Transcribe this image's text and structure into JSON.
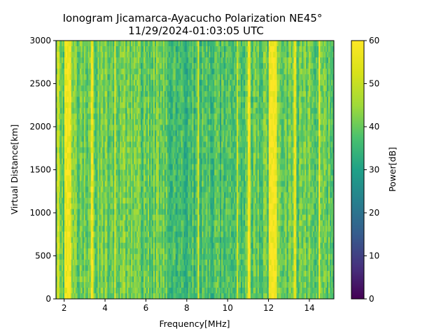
{
  "chart_data": {
    "type": "heatmap",
    "title": "Ionogram Jicamarca-Ayacucho Polarization NE45°",
    "subtitle": "11/29/2024-01:03:05 UTC",
    "xlabel": "Frequency[MHz]",
    "ylabel": "Virtual Distance[km]",
    "xlim": [
      1.6,
      15.2
    ],
    "ylim": [
      0,
      3000
    ],
    "x_ticks": [
      2,
      4,
      6,
      8,
      10,
      12,
      14
    ],
    "x_tick_labels": [
      "2",
      "4",
      "6",
      "8",
      "10",
      "12",
      "14"
    ],
    "y_ticks": [
      0,
      500,
      1000,
      1500,
      2000,
      2500,
      3000
    ],
    "y_tick_labels": [
      "0",
      "500",
      "1000",
      "1500",
      "2000",
      "2500",
      "3000"
    ],
    "colorbar": {
      "label": "Power[dB]",
      "colormap": "viridis",
      "range": [
        0,
        60
      ],
      "ticks": [
        0,
        10,
        20,
        30,
        40,
        50,
        60
      ],
      "tick_labels": [
        "0",
        "10",
        "20",
        "30",
        "40",
        "50",
        "60"
      ]
    },
    "bright_bands_mhz": [
      {
        "center": 1.7,
        "width": 0.1,
        "power": 55
      },
      {
        "center": 2.2,
        "width": 0.35,
        "power": 58
      },
      {
        "center": 3.35,
        "width": 0.15,
        "power": 57
      },
      {
        "center": 4.5,
        "width": 0.1,
        "power": 55
      },
      {
        "center": 8.55,
        "width": 0.08,
        "power": 54
      },
      {
        "center": 10.5,
        "width": 0.08,
        "power": 50
      },
      {
        "center": 11.05,
        "width": 0.2,
        "power": 58
      },
      {
        "center": 12.2,
        "width": 0.4,
        "power": 59
      },
      {
        "center": 13.3,
        "width": 0.15,
        "power": 55
      },
      {
        "center": 14.5,
        "width": 0.1,
        "power": 57
      }
    ],
    "background_power_db": {
      "min": 30,
      "max": 50,
      "typical": 40
    }
  }
}
